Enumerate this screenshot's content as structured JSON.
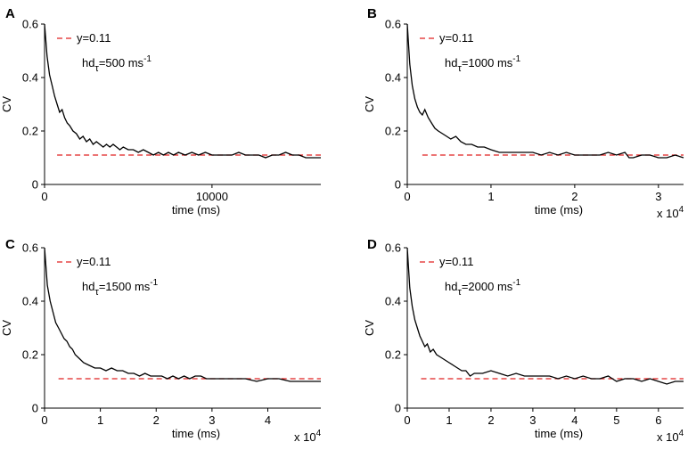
{
  "chart_data": [
    {
      "panel": "A",
      "type": "line",
      "xlabel": "time (ms)",
      "ylabel": "CV",
      "xlim": [
        0,
        16500
      ],
      "ylim": [
        0,
        0.6
      ],
      "xticks": [
        0,
        10000
      ],
      "xtick_labels": [
        "0",
        "10000"
      ],
      "yticks": [
        0,
        0.2,
        0.4,
        0.6
      ],
      "ytick_labels": [
        "0",
        "0.2",
        "0.4",
        "0.6"
      ],
      "x_multiplier": "",
      "annotation": {
        "prefix": "hd",
        "sub": "τ",
        "main": "=500 ms",
        "sup": "-1"
      },
      "reference": {
        "label": "y=0.11",
        "value": 0.11,
        "x_start": 750,
        "color": "#e02020"
      },
      "series": [
        {
          "name": "CV",
          "color": "#000000",
          "x": [
            0,
            150,
            300,
            450,
            600,
            750,
            900,
            1050,
            1200,
            1350,
            1500,
            1700,
            1900,
            2100,
            2300,
            2500,
            2700,
            2900,
            3100,
            3300,
            3500,
            3700,
            3900,
            4100,
            4300,
            4500,
            4700,
            5000,
            5300,
            5600,
            5900,
            6200,
            6500,
            6800,
            7100,
            7400,
            7700,
            8000,
            8400,
            8800,
            9200,
            9600,
            10000,
            10400,
            10800,
            11200,
            11600,
            12000,
            12400,
            12800,
            13200,
            13600,
            14000,
            14400,
            14800,
            15200,
            15600,
            16000,
            16500
          ],
          "y": [
            0.6,
            0.48,
            0.41,
            0.37,
            0.33,
            0.3,
            0.27,
            0.28,
            0.25,
            0.23,
            0.22,
            0.2,
            0.19,
            0.17,
            0.18,
            0.16,
            0.17,
            0.15,
            0.16,
            0.15,
            0.14,
            0.15,
            0.14,
            0.15,
            0.14,
            0.13,
            0.14,
            0.13,
            0.13,
            0.12,
            0.13,
            0.12,
            0.11,
            0.12,
            0.11,
            0.12,
            0.11,
            0.12,
            0.11,
            0.12,
            0.11,
            0.12,
            0.11,
            0.11,
            0.11,
            0.11,
            0.12,
            0.11,
            0.11,
            0.11,
            0.1,
            0.11,
            0.11,
            0.12,
            0.11,
            0.11,
            0.1,
            0.1,
            0.1
          ]
        }
      ]
    },
    {
      "panel": "B",
      "type": "line",
      "xlabel": "time (ms)",
      "ylabel": "CV",
      "xlim": [
        0,
        3.3
      ],
      "ylim": [
        0,
        0.6
      ],
      "xticks": [
        0,
        1,
        2,
        3
      ],
      "xtick_labels": [
        "0",
        "1",
        "2",
        "3"
      ],
      "yticks": [
        0,
        0.2,
        0.4,
        0.6
      ],
      "ytick_labels": [
        "0",
        "0.2",
        "0.4",
        "0.6"
      ],
      "x_multiplier": {
        "base": "x 10",
        "exp": "4"
      },
      "annotation": {
        "prefix": "hd",
        "sub": "τ",
        "main": "=1000 ms",
        "sup": "-1"
      },
      "reference": {
        "label": "y=0.11",
        "value": 0.11,
        "x_start": 0.18,
        "color": "#e02020"
      },
      "series": [
        {
          "name": "CV",
          "color": "#000000",
          "x": [
            0,
            0.03,
            0.06,
            0.09,
            0.12,
            0.15,
            0.18,
            0.21,
            0.25,
            0.29,
            0.33,
            0.37,
            0.42,
            0.47,
            0.52,
            0.58,
            0.64,
            0.7,
            0.77,
            0.84,
            0.92,
            1.0,
            1.1,
            1.2,
            1.3,
            1.4,
            1.5,
            1.6,
            1.7,
            1.8,
            1.9,
            2.0,
            2.1,
            2.2,
            2.3,
            2.4,
            2.5,
            2.6,
            2.65,
            2.7,
            2.8,
            2.9,
            3.0,
            3.1,
            3.2,
            3.3
          ],
          "y": [
            0.6,
            0.45,
            0.37,
            0.32,
            0.29,
            0.27,
            0.26,
            0.28,
            0.25,
            0.23,
            0.21,
            0.2,
            0.19,
            0.18,
            0.17,
            0.18,
            0.16,
            0.15,
            0.15,
            0.14,
            0.14,
            0.13,
            0.12,
            0.12,
            0.12,
            0.12,
            0.12,
            0.11,
            0.12,
            0.11,
            0.12,
            0.11,
            0.11,
            0.11,
            0.11,
            0.12,
            0.11,
            0.12,
            0.1,
            0.1,
            0.11,
            0.11,
            0.1,
            0.1,
            0.11,
            0.1
          ]
        }
      ]
    },
    {
      "panel": "C",
      "type": "line",
      "xlabel": "time (ms)",
      "ylabel": "CV",
      "xlim": [
        0,
        4.95
      ],
      "ylim": [
        0,
        0.6
      ],
      "xticks": [
        0,
        1,
        2,
        3,
        4
      ],
      "xtick_labels": [
        "0",
        "1",
        "2",
        "3",
        "4"
      ],
      "yticks": [
        0,
        0.2,
        0.4,
        0.6
      ],
      "ytick_labels": [
        "0",
        "0.2",
        "0.4",
        "0.6"
      ],
      "x_multiplier": {
        "base": "x 10",
        "exp": "4"
      },
      "annotation": {
        "prefix": "hd",
        "sub": "τ",
        "main": "=1500 ms",
        "sup": "-1"
      },
      "reference": {
        "label": "y=0.11",
        "value": 0.11,
        "x_start": 0.25,
        "color": "#e02020"
      },
      "series": [
        {
          "name": "CV",
          "color": "#000000",
          "x": [
            0,
            0.05,
            0.1,
            0.15,
            0.2,
            0.25,
            0.3,
            0.35,
            0.4,
            0.45,
            0.5,
            0.55,
            0.6,
            0.7,
            0.8,
            0.9,
            1.0,
            1.1,
            1.2,
            1.3,
            1.4,
            1.5,
            1.6,
            1.7,
            1.8,
            1.9,
            2.0,
            2.1,
            2.2,
            2.3,
            2.4,
            2.5,
            2.6,
            2.7,
            2.8,
            2.9,
            3.0,
            3.1,
            3.2,
            3.4,
            3.6,
            3.8,
            4.0,
            4.2,
            4.4,
            4.6,
            4.8,
            4.95
          ],
          "y": [
            0.6,
            0.46,
            0.4,
            0.36,
            0.32,
            0.3,
            0.28,
            0.26,
            0.25,
            0.23,
            0.22,
            0.2,
            0.19,
            0.17,
            0.16,
            0.15,
            0.15,
            0.14,
            0.15,
            0.14,
            0.14,
            0.13,
            0.13,
            0.12,
            0.13,
            0.12,
            0.12,
            0.12,
            0.11,
            0.12,
            0.11,
            0.12,
            0.11,
            0.12,
            0.12,
            0.11,
            0.11,
            0.11,
            0.11,
            0.11,
            0.11,
            0.1,
            0.11,
            0.11,
            0.1,
            0.1,
            0.1,
            0.1
          ]
        }
      ]
    },
    {
      "panel": "D",
      "type": "line",
      "xlabel": "time (ms)",
      "ylabel": "CV",
      "xlim": [
        0,
        6.6
      ],
      "ylim": [
        0,
        0.6
      ],
      "xticks": [
        0,
        1,
        2,
        3,
        4,
        5,
        6
      ],
      "xtick_labels": [
        "0",
        "1",
        "2",
        "3",
        "4",
        "5",
        "6"
      ],
      "yticks": [
        0,
        0.2,
        0.4,
        0.6
      ],
      "ytick_labels": [
        "0",
        "0.2",
        "0.4",
        "0.6"
      ],
      "x_multiplier": {
        "base": "x 10",
        "exp": "4"
      },
      "annotation": {
        "prefix": "hd",
        "sub": "τ",
        "main": "=2000 ms",
        "sup": "-1"
      },
      "reference": {
        "label": "y=0.11",
        "value": 0.11,
        "x_start": 0.33,
        "color": "#e02020"
      },
      "series": [
        {
          "name": "CV",
          "color": "#000000",
          "x": [
            0,
            0.06,
            0.12,
            0.18,
            0.24,
            0.3,
            0.36,
            0.42,
            0.48,
            0.55,
            0.62,
            0.7,
            0.8,
            0.9,
            1.0,
            1.1,
            1.2,
            1.3,
            1.4,
            1.5,
            1.6,
            1.7,
            1.8,
            2.0,
            2.2,
            2.4,
            2.6,
            2.8,
            3.0,
            3.2,
            3.4,
            3.6,
            3.8,
            4.0,
            4.2,
            4.4,
            4.6,
            4.8,
            5.0,
            5.2,
            5.4,
            5.6,
            5.8,
            6.0,
            6.2,
            6.4,
            6.6
          ],
          "y": [
            0.6,
            0.45,
            0.38,
            0.33,
            0.3,
            0.27,
            0.25,
            0.23,
            0.24,
            0.21,
            0.22,
            0.2,
            0.19,
            0.18,
            0.17,
            0.16,
            0.15,
            0.14,
            0.14,
            0.12,
            0.13,
            0.13,
            0.13,
            0.14,
            0.13,
            0.12,
            0.13,
            0.12,
            0.12,
            0.12,
            0.12,
            0.11,
            0.12,
            0.11,
            0.12,
            0.11,
            0.11,
            0.12,
            0.1,
            0.11,
            0.11,
            0.1,
            0.11,
            0.1,
            0.09,
            0.1,
            0.1
          ]
        }
      ]
    }
  ]
}
